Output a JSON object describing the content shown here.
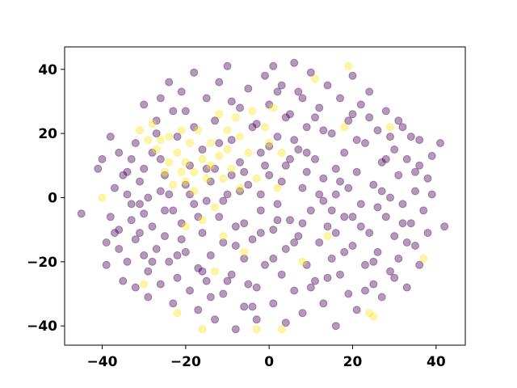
{
  "chart_data": {
    "type": "scatter",
    "title": "",
    "xlabel": "",
    "ylabel": "",
    "xlim": [
      -49,
      47
    ],
    "ylim": [
      -46,
      47
    ],
    "xticks": [
      -40,
      -20,
      0,
      20,
      40
    ],
    "yticks": [
      -40,
      -20,
      0,
      20,
      40
    ],
    "xtick_labels": [
      "−40",
      "−20",
      "0",
      "20",
      "40"
    ],
    "ytick_labels": [
      "−40",
      "−20",
      "0",
      "20",
      "40"
    ],
    "grid": false,
    "legend": "none",
    "marker_alpha": 0.4,
    "series": [
      {
        "color": "#440154",
        "points": [
          [
            -45,
            -5
          ],
          [
            -41,
            9
          ],
          [
            -40,
            12
          ],
          [
            -39,
            -14
          ],
          [
            -39,
            -21
          ],
          [
            -38,
            19
          ],
          [
            -38,
            -6
          ],
          [
            -37,
            3
          ],
          [
            -36,
            14
          ],
          [
            -36,
            -10
          ],
          [
            -36,
            -16
          ],
          [
            -35,
            7
          ],
          [
            -35,
            -26
          ],
          [
            -34,
            1
          ],
          [
            -34,
            -20
          ],
          [
            -33,
            12
          ],
          [
            -33,
            -7
          ],
          [
            -32,
            17
          ],
          [
            -32,
            -13
          ],
          [
            -32,
            -28
          ],
          [
            -31,
            5
          ],
          [
            -31,
            -2
          ],
          [
            -30,
            9
          ],
          [
            -30,
            -18
          ],
          [
            -30,
            29
          ],
          [
            -29,
            0
          ],
          [
            -29,
            -23
          ],
          [
            -29,
            -31
          ],
          [
            -28,
            14
          ],
          [
            -28,
            -9
          ],
          [
            -27,
            24
          ],
          [
            -27,
            -16
          ],
          [
            -26,
            2
          ],
          [
            -26,
            31
          ],
          [
            -26,
            -27
          ],
          [
            -25,
            7
          ],
          [
            -25,
            -12
          ],
          [
            -24,
            -20
          ],
          [
            -24,
            36
          ],
          [
            -23,
            -4
          ],
          [
            -23,
            -33
          ],
          [
            -22,
            19
          ],
          [
            -22,
            -25
          ],
          [
            -21,
            33
          ],
          [
            -21,
            -8
          ],
          [
            -20,
            27
          ],
          [
            -20,
            -17
          ],
          [
            -19,
            -29
          ],
          [
            -19,
            10
          ],
          [
            -18,
            39
          ],
          [
            -18,
            -2
          ],
          [
            -17,
            -22
          ],
          [
            -17,
            -35
          ],
          [
            -16,
            15
          ],
          [
            -16,
            -11
          ],
          [
            -15,
            31
          ],
          [
            -15,
            -26
          ],
          [
            -14,
            5
          ],
          [
            -14,
            -18
          ],
          [
            -13,
            -38
          ],
          [
            -13,
            24
          ],
          [
            -12,
            -6
          ],
          [
            -12,
            36
          ],
          [
            -11,
            -14
          ],
          [
            -11,
            -30
          ],
          [
            -10,
            1
          ],
          [
            -10,
            41
          ],
          [
            -9,
            18
          ],
          [
            -9,
            -24
          ],
          [
            -8,
            -9
          ],
          [
            -8,
            -41
          ],
          [
            -7,
            28
          ],
          [
            -7,
            11
          ],
          [
            -6,
            -19
          ],
          [
            -6,
            -34
          ],
          [
            -5,
            34
          ],
          [
            -5,
            4
          ],
          [
            -4,
            -13
          ],
          [
            -4,
            22
          ],
          [
            -3,
            -28
          ],
          [
            -3,
            -38
          ],
          [
            -2,
            14
          ],
          [
            -2,
            -4
          ],
          [
            -1,
            38
          ],
          [
            -1,
            -21
          ],
          [
            0,
            29
          ],
          [
            0,
            7
          ],
          [
            1,
            -10
          ],
          [
            1,
            -33
          ],
          [
            1,
            41
          ],
          [
            2,
            19
          ],
          [
            2,
            -2
          ],
          [
            3,
            -24
          ],
          [
            3,
            35
          ],
          [
            4,
            10
          ],
          [
            4,
            -16
          ],
          [
            4,
            -39
          ],
          [
            5,
            26
          ],
          [
            5,
            -7
          ],
          [
            6,
            42
          ],
          [
            6,
            -29
          ],
          [
            7,
            15
          ],
          [
            7,
            -12
          ],
          [
            8,
            31
          ],
          [
            8,
            3
          ],
          [
            8,
            -36
          ],
          [
            9,
            -21
          ],
          [
            9,
            22
          ],
          [
            10,
            39
          ],
          [
            10,
            -4
          ],
          [
            11,
            -26
          ],
          [
            11,
            12
          ],
          [
            12,
            28
          ],
          [
            12,
            -14
          ],
          [
            13,
            -33
          ],
          [
            13,
            6
          ],
          [
            14,
            35
          ],
          [
            14,
            -9
          ],
          [
            15,
            20
          ],
          [
            15,
            -19
          ],
          [
            16,
            -40
          ],
          [
            16,
            1
          ],
          [
            17,
            31
          ],
          [
            17,
            -24
          ],
          [
            18,
            14
          ],
          [
            18,
            -6
          ],
          [
            19,
            -30
          ],
          [
            19,
            24
          ],
          [
            20,
            38
          ],
          [
            20,
            -15
          ],
          [
            21,
            8
          ],
          [
            21,
            -35
          ],
          [
            22,
            29
          ],
          [
            22,
            -2
          ],
          [
            23,
            -21
          ],
          [
            23,
            17
          ],
          [
            24,
            33
          ],
          [
            24,
            -11
          ],
          [
            25,
            -27
          ],
          [
            25,
            4
          ],
          [
            26,
            21
          ],
          [
            26,
            -17
          ],
          [
            27,
            11
          ],
          [
            27,
            -31
          ],
          [
            28,
            27
          ],
          [
            28,
            -6
          ],
          [
            29,
            0
          ],
          [
            29,
            -23
          ],
          [
            30,
            15
          ],
          [
            30,
            -12
          ],
          [
            31,
            7
          ],
          [
            31,
            -19
          ],
          [
            32,
            22
          ],
          [
            32,
            -2
          ],
          [
            33,
            -28
          ],
          [
            33,
            12
          ],
          [
            34,
            -8
          ],
          [
            34,
            19
          ],
          [
            35,
            2
          ],
          [
            35,
            -15
          ],
          [
            36,
            10
          ],
          [
            36,
            -21
          ],
          [
            37,
            -4
          ],
          [
            38,
            6
          ],
          [
            38,
            -11
          ],
          [
            39,
            1
          ],
          [
            39,
            13
          ],
          [
            41,
            17
          ],
          [
            42,
            -9
          ],
          [
            -37,
            -11
          ],
          [
            -33,
            -2
          ],
          [
            -28,
            -20
          ],
          [
            -27,
            20
          ],
          [
            -24,
            1
          ],
          [
            -23,
            27
          ],
          [
            -21,
            -13
          ],
          [
            -20,
            4
          ],
          [
            -18,
            22
          ],
          [
            -17,
            -6
          ],
          [
            -15,
            9
          ],
          [
            -14,
            -31
          ],
          [
            -12,
            17
          ],
          [
            -11,
            -1
          ],
          [
            -9,
            30
          ],
          [
            -8,
            -15
          ],
          [
            -6,
            8
          ],
          [
            -5,
            -27
          ],
          [
            -3,
            23
          ],
          [
            -2,
            -11
          ],
          [
            0,
            16
          ],
          [
            1,
            -19
          ],
          [
            3,
            5
          ],
          [
            4,
            25
          ],
          [
            6,
            -14
          ],
          [
            7,
            33
          ],
          [
            9,
            8
          ],
          [
            10,
            -28
          ],
          [
            12,
            1
          ],
          [
            13,
            21
          ],
          [
            15,
            -4
          ],
          [
            16,
            9
          ],
          [
            18,
            -17
          ],
          [
            19,
            3
          ],
          [
            21,
            18
          ],
          [
            22,
            -9
          ],
          [
            24,
            25
          ],
          [
            25,
            -20
          ],
          [
            27,
            2
          ],
          [
            28,
            12
          ],
          [
            30,
            -25
          ],
          [
            31,
            24
          ],
          [
            33,
            -14
          ],
          [
            35,
            8
          ],
          [
            36,
            18
          ],
          [
            -34,
            8
          ],
          [
            -30,
            -5
          ],
          [
            -26,
            12
          ],
          [
            -22,
            -18
          ],
          [
            -19,
            1
          ],
          [
            -16,
            -23
          ],
          [
            -13,
            9
          ],
          [
            -10,
            -26
          ],
          [
            -7,
            2
          ],
          [
            -4,
            -34
          ],
          [
            -1,
            10
          ],
          [
            2,
            33
          ],
          [
            5,
            12
          ],
          [
            8,
            -8
          ],
          [
            11,
            25
          ],
          [
            14,
            -25
          ],
          [
            17,
            5
          ],
          [
            20,
            26
          ],
          [
            23,
            -29
          ],
          [
            26,
            -3
          ],
          [
            29,
            19
          ],
          [
            32,
            -8
          ],
          [
            -31,
            -11
          ],
          [
            -25,
            -4
          ],
          [
            -15,
            -1
          ],
          [
            -9,
            7
          ],
          [
            -6,
            -8
          ],
          [
            -2,
            1
          ],
          [
            2,
            -7
          ],
          [
            6,
            18
          ],
          [
            9,
            14
          ],
          [
            13,
            -1
          ],
          [
            16,
            -11
          ],
          [
            20,
            -6
          ]
        ]
      },
      {
        "color": "#fde725",
        "points": [
          [
            -40,
            0
          ],
          [
            -31,
            21
          ],
          [
            -29,
            18
          ],
          [
            -28,
            23
          ],
          [
            -27,
            15
          ],
          [
            -26,
            18
          ],
          [
            -25,
            8
          ],
          [
            -24,
            11
          ],
          [
            -24,
            19
          ],
          [
            -23,
            4
          ],
          [
            -22,
            14
          ],
          [
            -21,
            8
          ],
          [
            -21,
            21
          ],
          [
            -20,
            11
          ],
          [
            -20,
            5
          ],
          [
            -19,
            17
          ],
          [
            -18,
            8
          ],
          [
            -18,
            2
          ],
          [
            -17,
            21
          ],
          [
            -16,
            12
          ],
          [
            -16,
            -7
          ],
          [
            -15,
            6
          ],
          [
            -14,
            17
          ],
          [
            -14,
            10
          ],
          [
            -13,
            -3
          ],
          [
            -12,
            26
          ],
          [
            -12,
            13
          ],
          [
            -11,
            6
          ],
          [
            -10,
            21
          ],
          [
            -10,
            15
          ],
          [
            -9,
            9
          ],
          [
            -8,
            25
          ],
          [
            -7,
            19
          ],
          [
            -7,
            3
          ],
          [
            -5,
            14
          ],
          [
            -4,
            27
          ],
          [
            -3,
            6
          ],
          [
            -1,
            22
          ],
          [
            0,
            17
          ],
          [
            1,
            28
          ],
          [
            2,
            3
          ],
          [
            3,
            14
          ],
          [
            -22,
            -36
          ],
          [
            -16,
            -41
          ],
          [
            -11,
            -12
          ],
          [
            -3,
            -41
          ],
          [
            3,
            -41
          ],
          [
            11,
            37
          ],
          [
            19,
            41
          ],
          [
            24,
            -36
          ],
          [
            25,
            -37
          ],
          [
            37,
            -19
          ],
          [
            18,
            22
          ],
          [
            29,
            22
          ],
          [
            -20,
            -9
          ],
          [
            -13,
            -23
          ],
          [
            -30,
            -27
          ],
          [
            -6,
            -17
          ],
          [
            8,
            -20
          ],
          [
            14,
            -12
          ]
        ]
      }
    ]
  }
}
